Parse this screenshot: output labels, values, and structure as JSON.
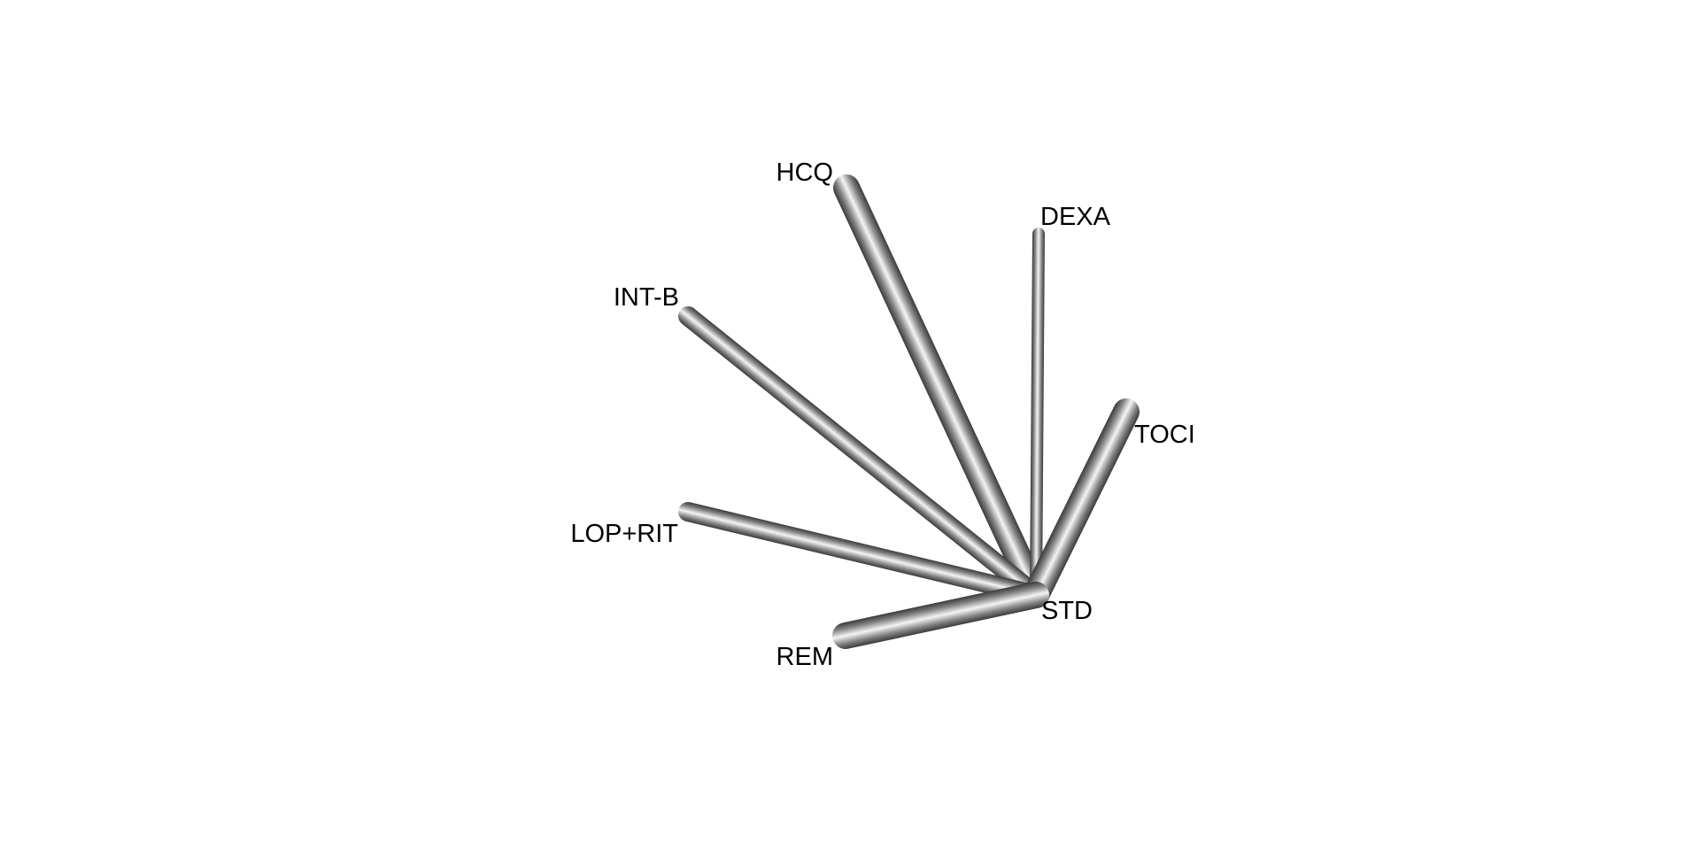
{
  "diagram": {
    "type": "network",
    "hub": "STD",
    "nodes": [
      {
        "id": "STD",
        "label": "STD"
      },
      {
        "id": "HCQ",
        "label": "HCQ"
      },
      {
        "id": "DEXA",
        "label": "DEXA"
      },
      {
        "id": "INT-B",
        "label": "INT-B"
      },
      {
        "id": "TOCI",
        "label": "TOCI"
      },
      {
        "id": "LOP+RIT",
        "label": "LOP+RIT"
      },
      {
        "id": "REM",
        "label": "REM"
      }
    ],
    "edges": [
      {
        "from": "STD",
        "to": "HCQ",
        "relative_weight": 3
      },
      {
        "from": "STD",
        "to": "DEXA",
        "relative_weight": 1
      },
      {
        "from": "STD",
        "to": "INT-B",
        "relative_weight": 2
      },
      {
        "from": "STD",
        "to": "TOCI",
        "relative_weight": 3
      },
      {
        "from": "STD",
        "to": "LOP+RIT",
        "relative_weight": 2
      },
      {
        "from": "STD",
        "to": "REM",
        "relative_weight": 3
      }
    ],
    "edge_color": "#808080"
  }
}
